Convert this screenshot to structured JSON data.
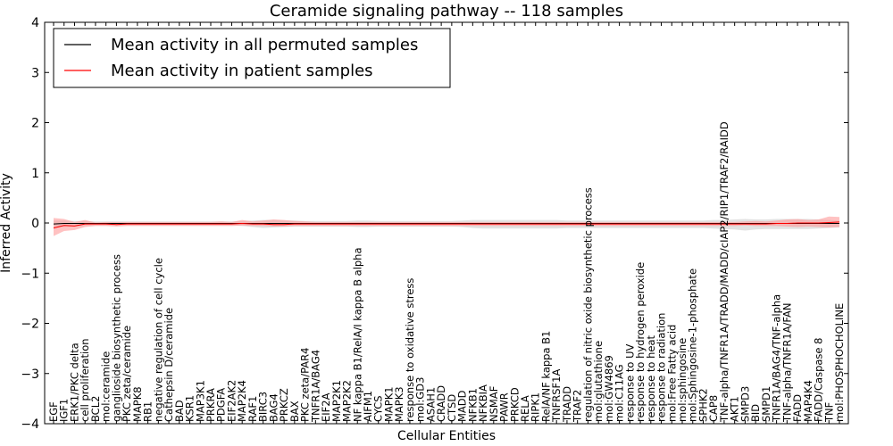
{
  "chart_data": {
    "type": "line",
    "title": "Ceramide signaling pathway -- 118 samples",
    "xlabel": "Cellular Entities",
    "ylabel": "Inferred Activity",
    "ylim": [
      -4,
      4
    ],
    "yticks": [
      -4,
      -3,
      -2,
      -1,
      0,
      1,
      2,
      3,
      4
    ],
    "ytick_labels": [
      "−4",
      "−3",
      "−2",
      "−1",
      "0",
      "1",
      "2",
      "3",
      "4"
    ],
    "grid": false,
    "legend_position": "upper-left",
    "categories": [
      "EGF",
      "IGF1",
      "ERK1/PKC delta",
      "cell proliferation",
      "BCL2",
      "mol:ceramide",
      "ganglioside biosynthetic process",
      "PKC zeta/ceramide",
      "MAPK8",
      "RB1",
      "negative regulation of cell cycle",
      "Cathepsin D/ceramide",
      "BAD",
      "KSR1",
      "MAP3K1",
      "PRKRA",
      "PDGFA",
      "EIF2AK2",
      "MAP2K4",
      "RAF1",
      "BIRC3",
      "BAG4",
      "PRKCZ",
      "BAX",
      "PKC zeta/PAR4",
      "TNFR1A/BAG4",
      "EIF2A",
      "MAP2K1",
      "MAP2K2",
      "NF kappa B1/RelA/I kappa B alpha",
      "AIFM1",
      "CYCS",
      "MAPK1",
      "MAPK3",
      "response to oxidative stress",
      "mol:GD3",
      "ASAH1",
      "CRADD",
      "CTSD",
      "MADD",
      "NFKB1",
      "NFKBIA",
      "NSMAF",
      "PAWR",
      "PRKCD",
      "RELA",
      "RIPK1",
      "RelA/NF kappa B1",
      "TNFRSF1A",
      "TRADD",
      "TRAF2",
      "regulation of nitric oxide biosynthetic process",
      "mol:glutathione",
      "mol:GW4869",
      "mol:C11AG",
      "response to UV",
      "response to hydrogen peroxide",
      "response to heat",
      "response to radiation",
      "mol:Free Fatty acid",
      "mol:sphingosine",
      "mol:Sphingosine-1-phosphate",
      "SPHK2",
      "CAP8",
      "TNF-alpha/TNFR1A/TRADD/MADD/cIAP2/RIP1/TRAF2/RAIDD",
      "AKT1",
      "SMPD3",
      "BID",
      "SMPD1",
      "TNFR1A/BAG4/TNF-alpha",
      "TNF-alpha/TNFR1A/FAN",
      "FADD",
      "MAP4K4",
      "FADD/Caspase 8",
      "TNF",
      "mol:PHOSPHOCHOLINE"
    ],
    "series": [
      {
        "name": "Mean activity in all permuted samples",
        "color": "#000000",
        "values": [
          -0.02,
          -0.01,
          -0.01,
          -0.01,
          -0.01,
          -0.01,
          -0.01,
          -0.01,
          -0.01,
          -0.01,
          -0.01,
          -0.01,
          -0.01,
          -0.01,
          -0.01,
          -0.01,
          -0.01,
          -0.01,
          -0.01,
          -0.01,
          -0.01,
          -0.01,
          -0.01,
          -0.01,
          -0.01,
          -0.01,
          -0.01,
          -0.01,
          -0.01,
          -0.01,
          -0.01,
          -0.01,
          -0.01,
          -0.01,
          -0.01,
          -0.01,
          -0.01,
          -0.01,
          -0.01,
          -0.01,
          -0.01,
          -0.01,
          -0.01,
          -0.01,
          -0.01,
          -0.01,
          -0.01,
          -0.01,
          -0.01,
          -0.01,
          -0.01,
          -0.01,
          -0.01,
          -0.01,
          -0.01,
          -0.01,
          -0.01,
          -0.01,
          -0.01,
          -0.01,
          -0.01,
          -0.01,
          -0.01,
          -0.01,
          -0.01,
          -0.01,
          -0.01,
          -0.01,
          -0.01,
          -0.01,
          -0.01,
          -0.01,
          -0.01,
          -0.01,
          -0.01,
          -0.01
        ],
        "band_color": "#dddddd",
        "band_upper": [
          0.05,
          0.05,
          0.04,
          0.04,
          0.03,
          0.03,
          0.03,
          0.03,
          0.03,
          0.03,
          0.03,
          0.03,
          0.03,
          0.03,
          0.03,
          0.03,
          0.03,
          0.03,
          0.04,
          0.05,
          0.06,
          0.06,
          0.05,
          0.05,
          0.04,
          0.04,
          0.04,
          0.04,
          0.04,
          0.05,
          0.05,
          0.04,
          0.04,
          0.04,
          0.04,
          0.04,
          0.04,
          0.04,
          0.04,
          0.05,
          0.06,
          0.06,
          0.06,
          0.06,
          0.06,
          0.06,
          0.06,
          0.06,
          0.06,
          0.05,
          0.05,
          0.05,
          0.05,
          0.05,
          0.05,
          0.05,
          0.05,
          0.05,
          0.05,
          0.05,
          0.05,
          0.05,
          0.05,
          0.06,
          0.06,
          0.07,
          0.08,
          0.07,
          0.07,
          0.08,
          0.08,
          0.08,
          0.08,
          0.07,
          0.06,
          0.05
        ],
        "band_lower": [
          -0.09,
          -0.08,
          -0.07,
          -0.06,
          -0.05,
          -0.05,
          -0.05,
          -0.05,
          -0.05,
          -0.05,
          -0.05,
          -0.05,
          -0.05,
          -0.05,
          -0.05,
          -0.05,
          -0.05,
          -0.05,
          -0.06,
          -0.08,
          -0.1,
          -0.09,
          -0.08,
          -0.07,
          -0.07,
          -0.07,
          -0.07,
          -0.07,
          -0.07,
          -0.08,
          -0.08,
          -0.07,
          -0.07,
          -0.07,
          -0.07,
          -0.07,
          -0.07,
          -0.07,
          -0.07,
          -0.08,
          -0.1,
          -0.11,
          -0.11,
          -0.11,
          -0.11,
          -0.11,
          -0.11,
          -0.11,
          -0.11,
          -0.1,
          -0.1,
          -0.1,
          -0.1,
          -0.1,
          -0.1,
          -0.1,
          -0.1,
          -0.1,
          -0.1,
          -0.1,
          -0.1,
          -0.1,
          -0.1,
          -0.11,
          -0.12,
          -0.13,
          -0.15,
          -0.13,
          -0.12,
          -0.12,
          -0.12,
          -0.12,
          -0.12,
          -0.11,
          -0.1,
          -0.09
        ]
      },
      {
        "name": "Mean activity in patient samples",
        "color": "#ff0000",
        "values": [
          -0.1,
          -0.05,
          -0.06,
          -0.02,
          -0.02,
          -0.02,
          -0.03,
          -0.02,
          -0.02,
          -0.02,
          -0.02,
          -0.02,
          -0.02,
          -0.02,
          -0.02,
          -0.02,
          -0.02,
          -0.02,
          -0.01,
          -0.02,
          -0.02,
          -0.03,
          -0.03,
          -0.02,
          -0.02,
          -0.02,
          -0.02,
          -0.02,
          -0.02,
          -0.02,
          -0.02,
          -0.02,
          -0.02,
          -0.02,
          -0.02,
          -0.02,
          -0.02,
          -0.02,
          -0.02,
          -0.02,
          -0.02,
          -0.02,
          -0.02,
          -0.02,
          -0.02,
          -0.02,
          -0.02,
          -0.02,
          -0.02,
          -0.02,
          -0.02,
          -0.02,
          -0.02,
          -0.02,
          -0.02,
          -0.02,
          -0.02,
          -0.02,
          -0.02,
          -0.02,
          -0.02,
          -0.02,
          -0.02,
          -0.02,
          -0.02,
          -0.02,
          -0.02,
          -0.02,
          -0.02,
          -0.01,
          -0.01,
          0.0,
          0.0,
          0.0,
          0.01,
          0.02
        ],
        "band_color": "#ff9999",
        "band_upper": [
          0.1,
          0.08,
          0.02,
          0.06,
          0.01,
          0.02,
          0.02,
          0.02,
          0.02,
          0.02,
          0.02,
          0.02,
          0.02,
          0.02,
          0.02,
          0.02,
          0.03,
          0.02,
          0.06,
          0.03,
          0.05,
          0.07,
          0.06,
          0.04,
          0.03,
          0.02,
          0.02,
          0.02,
          0.02,
          0.02,
          0.02,
          0.02,
          0.02,
          0.02,
          0.02,
          0.02,
          0.02,
          0.02,
          0.02,
          0.02,
          0.02,
          0.02,
          0.02,
          0.02,
          0.02,
          0.02,
          0.02,
          0.02,
          0.02,
          0.02,
          0.02,
          0.02,
          0.02,
          0.02,
          0.02,
          0.02,
          0.02,
          0.02,
          0.02,
          0.02,
          0.02,
          0.02,
          0.02,
          0.02,
          0.02,
          0.02,
          0.03,
          0.04,
          0.03,
          0.05,
          0.07,
          0.08,
          0.06,
          0.07,
          0.13,
          0.12
        ],
        "band_lower": [
          -0.26,
          -0.16,
          -0.14,
          -0.08,
          -0.06,
          -0.06,
          -0.07,
          -0.06,
          -0.06,
          -0.06,
          -0.06,
          -0.06,
          -0.06,
          -0.06,
          -0.06,
          -0.06,
          -0.06,
          -0.06,
          -0.05,
          -0.06,
          -0.06,
          -0.07,
          -0.07,
          -0.06,
          -0.06,
          -0.06,
          -0.06,
          -0.06,
          -0.06,
          -0.06,
          -0.06,
          -0.06,
          -0.06,
          -0.06,
          -0.06,
          -0.06,
          -0.06,
          -0.06,
          -0.06,
          -0.06,
          -0.06,
          -0.06,
          -0.06,
          -0.06,
          -0.06,
          -0.06,
          -0.06,
          -0.06,
          -0.06,
          -0.06,
          -0.06,
          -0.06,
          -0.06,
          -0.06,
          -0.06,
          -0.06,
          -0.06,
          -0.06,
          -0.06,
          -0.06,
          -0.06,
          -0.06,
          -0.06,
          -0.06,
          -0.06,
          -0.06,
          -0.05,
          -0.06,
          -0.06,
          -0.06,
          -0.07,
          -0.08,
          -0.07,
          -0.08,
          -0.09,
          -0.08
        ]
      }
    ]
  }
}
